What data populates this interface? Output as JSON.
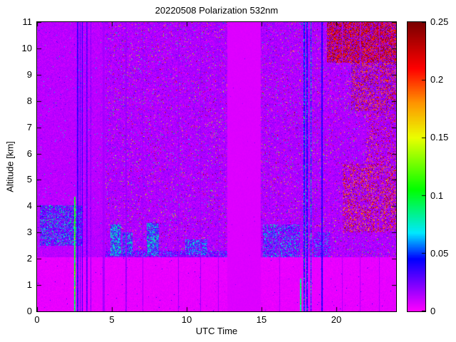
{
  "chart_data": {
    "type": "heatmap",
    "title": "20220508 Polarization 532nm",
    "xlabel": "UTC Time",
    "ylabel": "Altitude [km]",
    "xlim": [
      0,
      24
    ],
    "ylim": [
      0,
      11
    ],
    "xtick_values": [
      0,
      5,
      10,
      15,
      20
    ],
    "xtick_labels": [
      "0",
      "5",
      "10",
      "15",
      "20"
    ],
    "ytick_values": [
      0,
      1,
      2,
      3,
      4,
      5,
      6,
      7,
      8,
      9,
      10,
      11
    ],
    "ytick_labels": [
      "0",
      "1",
      "2",
      "3",
      "4",
      "5",
      "6",
      "7",
      "8",
      "9",
      "10",
      "11"
    ],
    "colorbar": {
      "min": 0,
      "max": 0.25,
      "tick_values": [
        0,
        0.05,
        0.1,
        0.15,
        0.2,
        0.25
      ],
      "tick_labels": [
        "0",
        "0.05",
        "0.1",
        "0.15",
        "0.2",
        "0.25"
      ]
    },
    "colormap_stops": [
      [
        0.0,
        "#ff00ff"
      ],
      [
        0.18,
        "#0000ff"
      ],
      [
        0.27,
        "#00e8ff"
      ],
      [
        0.42,
        "#00ff00"
      ],
      [
        0.6,
        "#eaff00"
      ],
      [
        0.72,
        "#ff9500"
      ],
      [
        0.84,
        "#ff0000"
      ],
      [
        1.0,
        "#7a0000"
      ]
    ],
    "seed": 20220508,
    "background_field": {
      "base": 0.012,
      "noise": 0.007,
      "sp": 0.008,
      "sv": [
        0.02,
        0.1
      ]
    },
    "regions": [
      {
        "name": "upper-background",
        "x": [
          0,
          24
        ],
        "y": [
          2.05,
          11
        ],
        "base": 0.012,
        "noise": 0.007,
        "sp": 0.008,
        "sv": [
          0.02,
          0.1
        ]
      },
      {
        "name": "boundary-layer",
        "x": [
          0,
          24
        ],
        "y": [
          0,
          2.05
        ],
        "base": 0.004,
        "noise": 0.0035,
        "sp": 0.004,
        "sv": [
          0.01,
          0.05
        ]
      },
      {
        "name": "noisy-region-a",
        "x": [
          4.55,
          12.72
        ],
        "y": [
          2.05,
          11
        ],
        "base": 0.014,
        "noise": 0.011,
        "sp": 0.04,
        "sv": [
          0.02,
          0.25
        ]
      },
      {
        "name": "noisy-region-b",
        "x": [
          14.95,
          24
        ],
        "y": [
          2.05,
          11
        ],
        "base": 0.014,
        "noise": 0.011,
        "sp": 0.04,
        "sv": [
          0.02,
          0.25
        ]
      },
      {
        "name": "data-gap-band",
        "x": [
          12.72,
          14.95
        ],
        "y": [
          0,
          11
        ],
        "base": 0.006,
        "noise": 0.0015,
        "sp": 0.001,
        "sv": [
          0.01,
          0.03
        ]
      },
      {
        "name": "aerosol-layer-left",
        "x": [
          0.2,
          3.05
        ],
        "y": [
          2.5,
          4.05
        ],
        "base": 0.022,
        "noise": 0.012,
        "sp": 0.28,
        "sv": [
          0.035,
          0.095
        ]
      },
      {
        "name": "layer-top-line",
        "x": [
          4.55,
          12.72
        ],
        "y": [
          2.05,
          2.3
        ],
        "base": 0.02,
        "noise": 0.012,
        "sp": 0.18,
        "sv": [
          0.03,
          0.08
        ]
      },
      {
        "name": "cyan-blob-1",
        "x": [
          4.9,
          5.6
        ],
        "y": [
          2.1,
          3.3
        ],
        "base": 0.025,
        "noise": 0.012,
        "sp": 0.5,
        "sv": [
          0.05,
          0.09
        ]
      },
      {
        "name": "cyan-blob-2",
        "x": [
          5.7,
          6.4
        ],
        "y": [
          2.1,
          3.0
        ],
        "base": 0.025,
        "noise": 0.012,
        "sp": 0.4,
        "sv": [
          0.045,
          0.09
        ]
      },
      {
        "name": "cyan-blob-3",
        "x": [
          7.35,
          8.15
        ],
        "y": [
          2.1,
          3.35
        ],
        "base": 0.025,
        "noise": 0.012,
        "sp": 0.45,
        "sv": [
          0.05,
          0.09
        ]
      },
      {
        "name": "cyan-line-4",
        "x": [
          9.9,
          11.4
        ],
        "y": [
          2.15,
          2.75
        ],
        "base": 0.022,
        "noise": 0.012,
        "sp": 0.35,
        "sv": [
          0.045,
          0.085
        ]
      },
      {
        "name": "aerosol-layer-right",
        "x": [
          15.1,
          17.55
        ],
        "y": [
          2.05,
          3.3
        ],
        "base": 0.02,
        "noise": 0.012,
        "sp": 0.25,
        "sv": [
          0.04,
          0.09
        ]
      },
      {
        "name": "aerosol-layer-right-2",
        "x": [
          18.5,
          19.6
        ],
        "y": [
          2.05,
          3.0
        ],
        "base": 0.018,
        "noise": 0.011,
        "sp": 0.2,
        "sv": [
          0.04,
          0.08
        ]
      },
      {
        "name": "dust-top-right",
        "x": [
          19.4,
          24
        ],
        "y": [
          9.45,
          11
        ],
        "base": 0.02,
        "noise": 0.015,
        "sp": 0.55,
        "sv": [
          0.19,
          0.25
        ]
      },
      {
        "name": "dust-right-upper",
        "x": [
          21,
          24
        ],
        "y": [
          7.6,
          9.45
        ],
        "base": 0.018,
        "noise": 0.013,
        "sp": 0.3,
        "sv": [
          0.17,
          0.25
        ]
      },
      {
        "name": "dust-right-mid",
        "x": [
          20.4,
          24
        ],
        "y": [
          3.0,
          5.6
        ],
        "base": 0.016,
        "noise": 0.012,
        "sp": 0.28,
        "sv": [
          0.16,
          0.25
        ]
      },
      {
        "name": "dust-right-sparse",
        "x": [
          22,
          24
        ],
        "y": [
          5.6,
          7.6
        ],
        "base": 0.015,
        "noise": 0.011,
        "sp": 0.15,
        "sv": [
          0.16,
          0.25
        ]
      }
    ],
    "stripes": [
      {
        "name": "green-calibration-line",
        "x": 2.52,
        "w": 0.09,
        "y": [
          0,
          4.35
        ],
        "base": 0.1,
        "noise": 0.035,
        "sp": 0.1,
        "sv": [
          0.05,
          0.16
        ]
      },
      {
        "name": "blue-stripe-a",
        "x": 2.72,
        "w": 0.07,
        "y": [
          0,
          11
        ],
        "base": 0.035,
        "noise": 0.012
      },
      {
        "name": "blue-stripe-b",
        "x": 2.87,
        "w": 0.06,
        "y": [
          0,
          11
        ],
        "base": 0.03,
        "noise": 0.01
      },
      {
        "name": "blue-stripe-c",
        "x": 3.03,
        "w": 0.06,
        "y": [
          0,
          11
        ],
        "base": 0.04,
        "noise": 0.012
      },
      {
        "name": "blue-stripe-d",
        "x": 3.33,
        "w": 0.08,
        "y": [
          0,
          11
        ],
        "base": 0.028,
        "noise": 0.01
      },
      {
        "name": "purple-stripe-e",
        "x": 3.6,
        "w": 0.05,
        "y": [
          0,
          11
        ],
        "base": 0.022,
        "noise": 0.008
      },
      {
        "name": "dark-column",
        "x": 4.45,
        "w": 0.18,
        "y": [
          0,
          11
        ],
        "base": 0.016,
        "noise": 0.004
      },
      {
        "name": "faint-column-1",
        "x": 5.95,
        "w": 0.06,
        "y": [
          0,
          11
        ],
        "base": 0.018,
        "noise": 0.006
      },
      {
        "name": "faint-column-2",
        "x": 7.05,
        "w": 0.05,
        "y": [
          0,
          11
        ],
        "base": 0.018,
        "noise": 0.006
      },
      {
        "name": "faint-column-3",
        "x": 9.45,
        "w": 0.05,
        "y": [
          0,
          11
        ],
        "base": 0.018,
        "noise": 0.006
      },
      {
        "name": "faint-column-4",
        "x": 10.95,
        "w": 0.05,
        "y": [
          0,
          11
        ],
        "base": 0.018,
        "noise": 0.006
      },
      {
        "name": "faint-column-5",
        "x": 12.1,
        "w": 0.05,
        "y": [
          0,
          11
        ],
        "base": 0.016,
        "noise": 0.005
      },
      {
        "name": "faint-column-6",
        "x": 16.2,
        "w": 0.06,
        "y": [
          0,
          11
        ],
        "base": 0.015,
        "noise": 0.005
      },
      {
        "name": "cyan-bottom-segment",
        "x": 17.62,
        "w": 0.12,
        "y": [
          0,
          1.25
        ],
        "base": 0.085,
        "noise": 0.025
      },
      {
        "name": "blue-stripe-r1",
        "x": 17.85,
        "w": 0.07,
        "y": [
          0,
          11
        ],
        "base": 0.045,
        "noise": 0.015,
        "sp": 0.15,
        "sv": [
          0.05,
          0.1
        ]
      },
      {
        "name": "blue-stripe-r2",
        "x": 18.05,
        "w": 0.06,
        "y": [
          0,
          11
        ],
        "base": 0.04,
        "noise": 0.012,
        "sp": 0.12,
        "sv": [
          0.05,
          0.09
        ]
      },
      {
        "name": "blue-stripe-r3",
        "x": 18.3,
        "w": 0.07,
        "y": [
          0,
          11
        ],
        "base": 0.05,
        "noise": 0.015,
        "sp": 0.2,
        "sv": [
          0.05,
          0.11
        ]
      },
      {
        "name": "blue-stripe-r4",
        "x": 19.05,
        "w": 0.07,
        "y": [
          0,
          11
        ],
        "base": 0.038,
        "noise": 0.012
      },
      {
        "name": "faint-column-7",
        "x": 20.4,
        "w": 0.05,
        "y": [
          0,
          11
        ],
        "base": 0.015,
        "noise": 0.005
      },
      {
        "name": "faint-column-8",
        "x": 21.6,
        "w": 0.05,
        "y": [
          0,
          11
        ],
        "base": 0.015,
        "noise": 0.005
      },
      {
        "name": "faint-column-9",
        "x": 22.9,
        "w": 0.05,
        "y": [
          0,
          11
        ],
        "base": 0.015,
        "noise": 0.005
      }
    ]
  }
}
